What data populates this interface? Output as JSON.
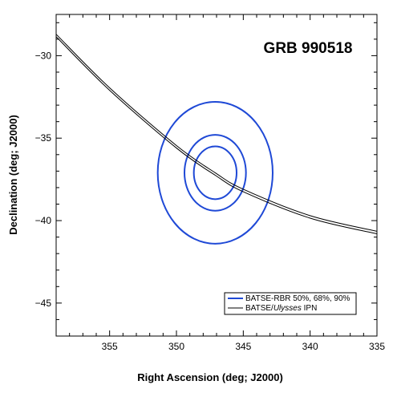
{
  "chart_data": {
    "type": "line",
    "title": "GRB 990518",
    "xlabel": "Right Ascension (deg; J2000)",
    "ylabel": "Declination (deg; J2000)",
    "xlim": [
      359,
      335
    ],
    "ylim": [
      -47,
      -27.5
    ],
    "x_reversed": true,
    "x_ticks": [
      355,
      350,
      345,
      340,
      335
    ],
    "y_ticks": [
      -30,
      -35,
      -40,
      -45
    ],
    "grid": false,
    "legend_position": "bottom-right",
    "series": [
      {
        "name": "BATSE-RBR 50%, 68%, 90%",
        "color": "#1f49d6",
        "center": [
          347.1,
          -37.1
        ],
        "radii_deg": [
          1.6,
          2.3,
          4.3
        ]
      },
      {
        "name_parts": [
          "BATSE/",
          "Ulysses",
          " IPN"
        ],
        "color": "#000000",
        "annulus_edges": [
          {
            "x": [
              359,
              355,
              350,
              347.1,
              345,
              340,
              335
            ],
            "y": [
              -28.85,
              -32.1,
              -35.6,
              -37.25,
              -38.25,
              -39.85,
              -40.8
            ]
          },
          {
            "x": [
              359,
              355,
              350,
              347.1,
              345,
              340,
              335
            ],
            "y": [
              -28.7,
              -31.95,
              -35.45,
              -37.1,
              -38.1,
              -39.7,
              -40.65
            ]
          }
        ]
      }
    ]
  }
}
